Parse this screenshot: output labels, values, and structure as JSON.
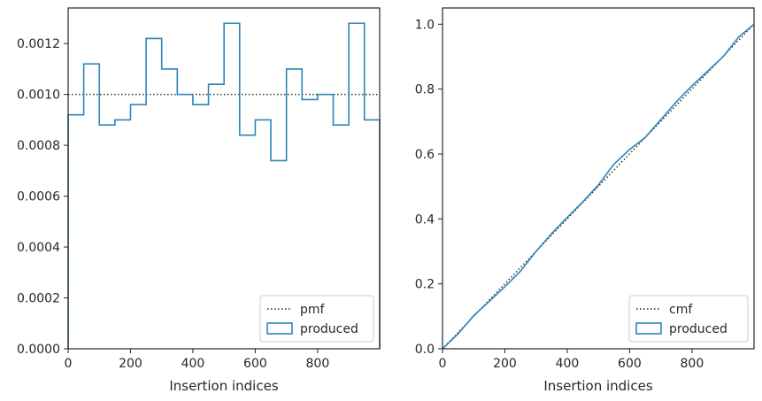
{
  "chart_data": [
    {
      "type": "histogram-step",
      "xlabel": "Insertion indices",
      "ylabel": "",
      "xlim": [
        0,
        999
      ],
      "ylim": [
        0,
        0.00134
      ],
      "xticks": [
        0,
        200,
        400,
        600,
        800
      ],
      "xtick_labels": [
        "0",
        "200",
        "400",
        "600",
        "800"
      ],
      "yticks": [
        0,
        0.0002,
        0.0004,
        0.0006,
        0.0008,
        0.001,
        0.0012
      ],
      "ytick_labels": [
        "0.0000",
        "0.0002",
        "0.0004",
        "0.0006",
        "0.0008",
        "0.0010",
        "0.0012"
      ],
      "legend_position": "lower-right",
      "series": [
        {
          "name": "pmf",
          "style": "dotted",
          "color": "#222222",
          "values": [
            0.001,
            0.001
          ],
          "x": [
            0,
            999
          ]
        },
        {
          "name": "produced",
          "style": "step",
          "color": "#2e86b8",
          "bin_edges": [
            0,
            50,
            100,
            150,
            200,
            250,
            300,
            350,
            400,
            450,
            500,
            550,
            600,
            650,
            700,
            750,
            800,
            850,
            900,
            950,
            999
          ],
          "values": [
            0.00092,
            0.00112,
            0.00088,
            0.0009,
            0.00096,
            0.00122,
            0.0011,
            0.001,
            0.00096,
            0.00104,
            0.00128,
            0.00084,
            0.0009,
            0.00074,
            0.0011,
            0.00098,
            0.001,
            0.00088,
            0.00128,
            0.0009
          ]
        }
      ]
    },
    {
      "type": "line",
      "xlabel": "Insertion indices",
      "ylabel": "",
      "xlim": [
        0,
        999
      ],
      "ylim": [
        0,
        1.05
      ],
      "xticks": [
        0,
        200,
        400,
        600,
        800
      ],
      "xtick_labels": [
        "0",
        "200",
        "400",
        "600",
        "800"
      ],
      "yticks": [
        0,
        0.2,
        0.4,
        0.6,
        0.8,
        1.0
      ],
      "ytick_labels": [
        "0.0",
        "0.2",
        "0.4",
        "0.6",
        "0.8",
        "1.0"
      ],
      "legend_position": "lower-right",
      "series": [
        {
          "name": "cmf",
          "style": "dotted",
          "color": "#222222",
          "x": [
            0,
            999
          ],
          "values": [
            0,
            1.0
          ]
        },
        {
          "name": "produced",
          "style": "line",
          "color": "#2e86b8",
          "x": [
            0,
            50,
            100,
            150,
            200,
            250,
            300,
            350,
            400,
            450,
            500,
            550,
            600,
            650,
            700,
            750,
            800,
            850,
            900,
            950,
            999
          ],
          "values": [
            0,
            0.046,
            0.102,
            0.146,
            0.191,
            0.239,
            0.3,
            0.355,
            0.405,
            0.453,
            0.505,
            0.569,
            0.614,
            0.651,
            0.706,
            0.761,
            0.81,
            0.855,
            0.9,
            0.961,
            1.0
          ]
        }
      ]
    }
  ]
}
